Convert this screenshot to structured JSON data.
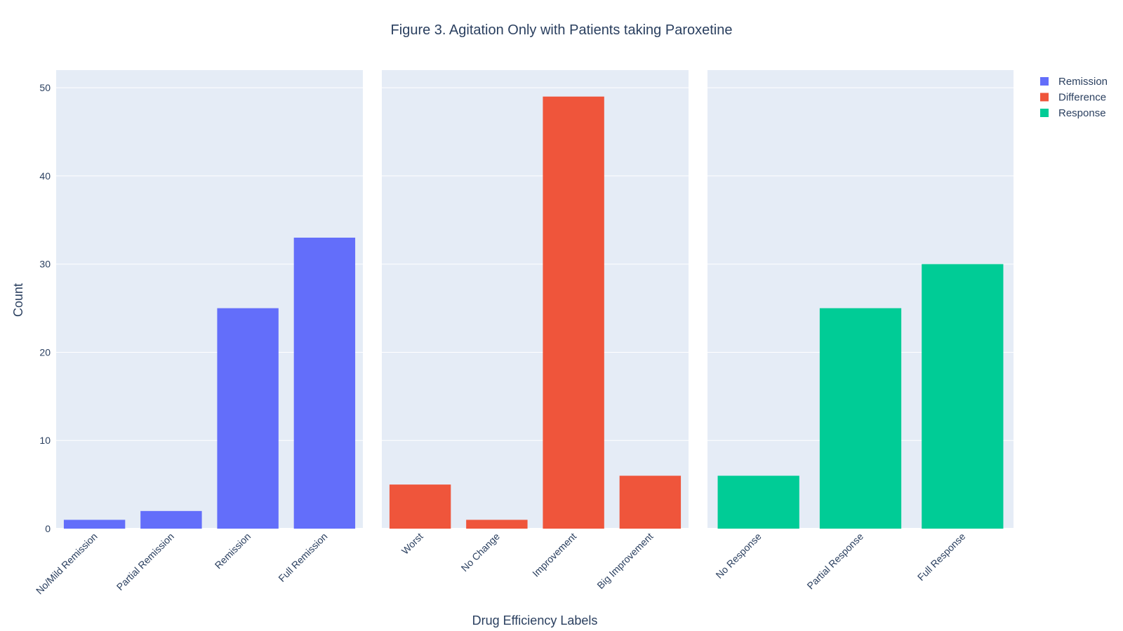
{
  "chart_data": {
    "type": "bar",
    "title": "Figure 3. Agitation Only with Patients taking Paroxetine",
    "xlabel": "Drug Efficiency Labels",
    "ylabel": "Count",
    "ylim": [
      0,
      52
    ],
    "yticks": [
      0,
      10,
      20,
      30,
      40,
      50
    ],
    "grid": true,
    "legend_position": "top-right",
    "series": [
      {
        "name": "Remission",
        "color": "#636efa",
        "categories": [
          "No/Mild Remission",
          "Partial Remission",
          "Remission",
          "Full Remission"
        ],
        "values": [
          1,
          2,
          25,
          33
        ]
      },
      {
        "name": "Difference",
        "color": "#ef553b",
        "categories": [
          "Worst",
          "No Change",
          "Improvement",
          "Big Improvement"
        ],
        "values": [
          5,
          1,
          49,
          6
        ]
      },
      {
        "name": "Response",
        "color": "#00cc96",
        "categories": [
          "No Response",
          "Partial Response",
          "Full Response"
        ],
        "values": [
          6,
          25,
          30
        ]
      }
    ]
  }
}
